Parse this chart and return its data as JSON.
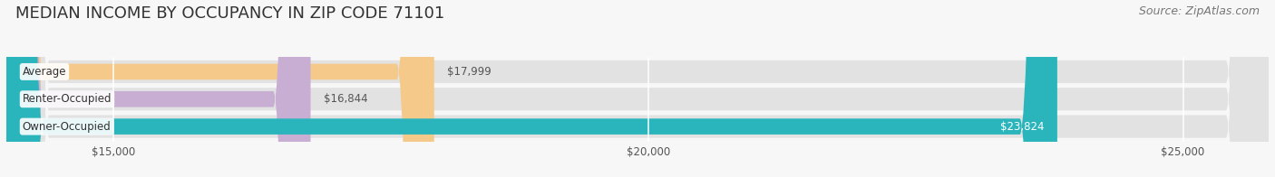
{
  "title": "MEDIAN INCOME BY OCCUPANCY IN ZIP CODE 71101",
  "source": "Source: ZipAtlas.com",
  "categories": [
    "Owner-Occupied",
    "Renter-Occupied",
    "Average"
  ],
  "values": [
    23824,
    16844,
    17999
  ],
  "bar_colors": [
    "#2ab5bc",
    "#c9aed4",
    "#f5c98a"
  ],
  "value_labels": [
    "$23,824",
    "$16,844",
    "$17,999"
  ],
  "value_label_colors": [
    "white",
    "#555555",
    "#555555"
  ],
  "value_label_inside": [
    true,
    false,
    false
  ],
  "xlim_min": 14000,
  "xlim_max": 25800,
  "xticks": [
    15000,
    20000,
    25000
  ],
  "xtick_labels": [
    "$15,000",
    "$20,000",
    "$25,000"
  ],
  "background_color": "#f7f7f7",
  "bar_background_color": "#e2e2e2",
  "title_fontsize": 13,
  "source_fontsize": 9,
  "label_fontsize": 8.5,
  "tick_fontsize": 8.5,
  "bar_height": 0.58
}
